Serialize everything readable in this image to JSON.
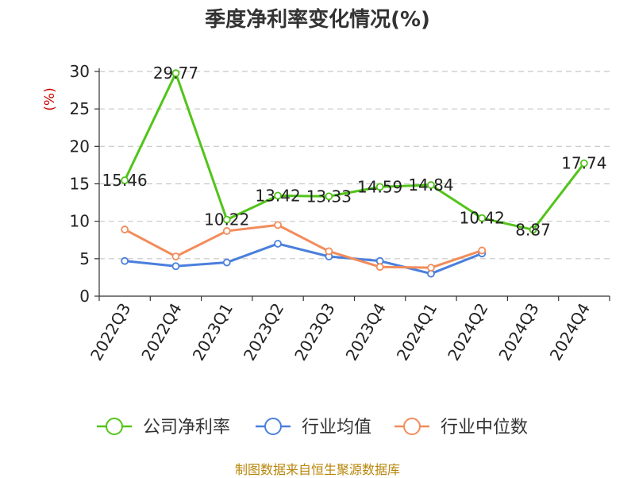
{
  "title": "季度净利率变化情况(%)",
  "source": "制图数据来自恒生聚源数据库",
  "chart_data": {
    "type": "line",
    "ylabel": "(%)",
    "ylim": [
      0,
      30
    ],
    "yticks": [
      0,
      5,
      10,
      15,
      20,
      25,
      30
    ],
    "grid": true,
    "legend_position": "bottom",
    "categories": [
      "2022Q3",
      "2022Q4",
      "2023Q1",
      "2023Q2",
      "2023Q3",
      "2023Q4",
      "2024Q1",
      "2024Q2",
      "2024Q3",
      "2024Q4"
    ],
    "series": [
      {
        "name": "公司净利率",
        "color": "#52c41a",
        "show_labels": true,
        "values": [
          15.46,
          29.77,
          10.22,
          13.42,
          13.33,
          14.59,
          14.84,
          10.42,
          8.87,
          17.74
        ]
      },
      {
        "name": "行业均值",
        "color": "#4a7fdc",
        "show_labels": false,
        "values": [
          4.7,
          4.0,
          4.5,
          7.0,
          5.3,
          4.7,
          3.0,
          5.7,
          null,
          null
        ]
      },
      {
        "name": "行业中位数",
        "color": "#f28c5b",
        "show_labels": false,
        "values": [
          8.9,
          5.3,
          8.7,
          9.5,
          6.0,
          3.9,
          3.8,
          6.1,
          null,
          null
        ]
      }
    ]
  }
}
